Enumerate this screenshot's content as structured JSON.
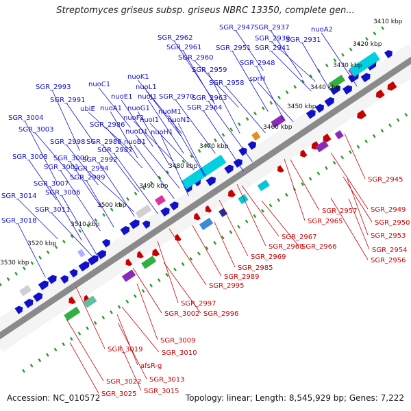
{
  "title": "Streptomyces griseus subsp. griseus NBRC 13350, complete gen...",
  "accession": "Accession: NC_010572",
  "summary": "Topology: linear; Length: 8,545,929 bp; Genes: 7,222",
  "colors": {
    "forward": "#1010c8",
    "reverse": "#c80000",
    "backbone": "#888888",
    "ticks": "#2a9a2a"
  },
  "kbp_ticks": [
    "3410 kbp",
    "3420 kbp",
    "3430 kbp",
    "3440 kbp",
    "3450 kbp",
    "3460 kbp",
    "3470 kbp",
    "3480 kbp",
    "3490 kbp",
    "3500 kbp",
    "3510 kbp",
    "3520 kbp",
    "3530 kbp"
  ],
  "forward_genes": [
    "SGR_2947",
    "SGR_2937",
    "nuoA2",
    "SGR_2962",
    "SGR_2939",
    "SGR_2931",
    "SGR_2961",
    "SGR_2951",
    "SGR_2941",
    "SGR_2960",
    "SGR_2948",
    "SGR_2959",
    "sprH",
    "SGR_2958",
    "nuoK1",
    "SGR_2993",
    "nuoC1",
    "nuoL1",
    "SGR_2970",
    "SGR_2963",
    "SGR_2991",
    "nuoE1",
    "nuoJ1",
    "SGR_2964",
    "ubiE",
    "nuoA1",
    "nuoG1",
    "nuoM1",
    "nuoF1",
    "nuoI1",
    "nuoN1",
    "SGR_3004",
    "SGR_2986",
    "SGR_3003",
    "nuoD1",
    "nuoH1",
    "SGR_2998",
    "SGR_2988",
    "nuoB1",
    "SGR_2987",
    "SGR_3008",
    "SGR_3000",
    "SGR_2992",
    "SGR_3001",
    "SGR_2994",
    "SGR_2999",
    "SGR_3007",
    "SGR_3006",
    "SGR_3014",
    "SGR_3011",
    "SGR_3018"
  ],
  "reverse_genes": [
    "SGR_2945",
    "SGR_2957",
    "SGR_2949",
    "SGR_2965",
    "SGR_2950",
    "SGR_2967",
    "SGR_2953",
    "SGR_2968",
    "SGR_2966",
    "SGR_2954",
    "SGR_2969",
    "SGR_2956",
    "SGR_2985",
    "SGR_2989",
    "SGR_2995",
    "SGR_2997",
    "SGR_3002",
    "SGR_2996",
    "SGR_3009",
    "SGR_3019",
    "SGR_3010",
    "afsR-g",
    "SGR_3013",
    "SGR_3022",
    "SGR_3015",
    "SGR_3025"
  ]
}
